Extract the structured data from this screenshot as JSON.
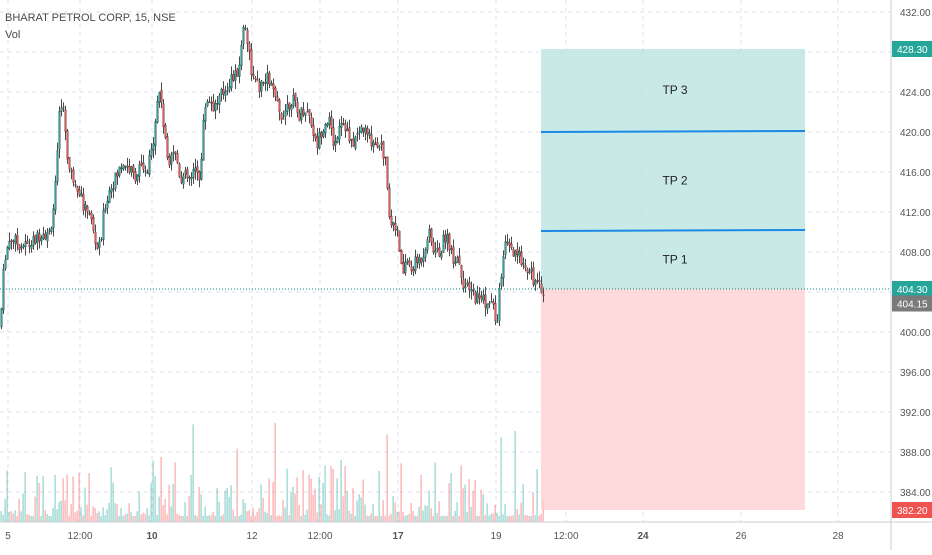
{
  "header": {
    "symbol_line": "BHARAT PETROL CORP, 15, NSE",
    "volume_label": "Vol"
  },
  "colors": {
    "up": "#26a69a",
    "down": "#ef5350",
    "target_zone": "#b2dfdb",
    "stop_zone": "#ffcdd2",
    "tp_line": "#1e88e5",
    "current_price_line": "#00897b",
    "current_price_badge": "#26a69a",
    "close_badge": "#7a7a7a",
    "bottom_badge": "#ef5350",
    "grid": "#e0e3eb",
    "axis_text": "#555555"
  },
  "chart_data": {
    "type": "candlestick",
    "title": "BHARAT PETROL CORP, 15, NSE",
    "price_axis": {
      "ticks": [
        "432.00",
        "428.00",
        "424.00",
        "420.00",
        "416.00",
        "412.00",
        "408.00",
        "404.00",
        "400.00",
        "396.00",
        "392.00",
        "388.00",
        "384.00"
      ],
      "range": [
        382.2,
        433.2
      ]
    },
    "time_axis": {
      "ticks": [
        {
          "label": "5",
          "bold": false
        },
        {
          "label": "12:00",
          "bold": false
        },
        {
          "label": "10",
          "bold": true
        },
        {
          "label": "12",
          "bold": false
        },
        {
          "label": "12:00",
          "bold": false
        },
        {
          "label": "17",
          "bold": true
        },
        {
          "label": "19",
          "bold": false
        },
        {
          "label": "12:00",
          "bold": false
        },
        {
          "label": "24",
          "bold": true
        },
        {
          "label": "26",
          "bold": false
        },
        {
          "label": "28",
          "bold": false
        }
      ]
    },
    "price_anchors": [
      [
        0,
        400.5
      ],
      [
        4,
        407.5
      ],
      [
        10,
        409.5
      ],
      [
        18,
        408.8
      ],
      [
        28,
        408.6
      ],
      [
        35,
        409.2
      ],
      [
        42,
        410.2
      ],
      [
        48,
        409.5
      ],
      [
        52,
        411.5
      ],
      [
        56,
        415.5
      ],
      [
        60,
        423.5
      ],
      [
        64,
        421.5
      ],
      [
        68,
        416.5
      ],
      [
        72,
        415.5
      ],
      [
        76,
        415
      ],
      [
        80,
        414
      ],
      [
        84,
        412
      ],
      [
        88,
        412.5
      ],
      [
        92,
        410.5
      ],
      [
        96,
        408.5
      ],
      [
        100,
        408.5
      ],
      [
        104,
        412.5
      ],
      [
        110,
        414.5
      ],
      [
        116,
        415.5
      ],
      [
        122,
        417
      ],
      [
        128,
        416.5
      ],
      [
        134,
        415.5
      ],
      [
        140,
        416.5
      ],
      [
        146,
        415.5
      ],
      [
        152,
        418.5
      ],
      [
        156,
        422.5
      ],
      [
        160,
        424.5
      ],
      [
        164,
        419.5
      ],
      [
        168,
        417
      ],
      [
        172,
        418.5
      ],
      [
        176,
        417.5
      ],
      [
        180,
        415.5
      ],
      [
        186,
        415.5
      ],
      [
        190,
        415
      ],
      [
        196,
        416.5
      ],
      [
        200,
        415.5
      ],
      [
        204,
        422.5
      ],
      [
        208,
        423.5
      ],
      [
        214,
        422.5
      ],
      [
        220,
        423.5
      ],
      [
        226,
        424.5
      ],
      [
        232,
        425.5
      ],
      [
        236,
        425.5
      ],
      [
        240,
        427.5
      ],
      [
        244,
        431.5
      ],
      [
        248,
        428.5
      ],
      [
        252,
        425.5
      ],
      [
        256,
        424.5
      ],
      [
        262,
        424.5
      ],
      [
        268,
        425.5
      ],
      [
        274,
        423.5
      ],
      [
        280,
        421.5
      ],
      [
        286,
        422.5
      ],
      [
        292,
        423.5
      ],
      [
        298,
        421.5
      ],
      [
        304,
        422.5
      ],
      [
        310,
        421.5
      ],
      [
        316,
        418.5
      ],
      [
        322,
        420.5
      ],
      [
        328,
        421.5
      ],
      [
        334,
        418.5
      ],
      [
        340,
        421.5
      ],
      [
        346,
        420.5
      ],
      [
        350,
        418.5
      ],
      [
        356,
        419.5
      ],
      [
        362,
        420.5
      ],
      [
        368,
        419.5
      ],
      [
        374,
        419
      ],
      [
        380,
        419
      ],
      [
        386,
        416.5
      ],
      [
        390,
        410.5
      ],
      [
        394,
        411.5
      ],
      [
        398,
        409
      ],
      [
        402,
        405.5
      ],
      [
        406,
        407.5
      ],
      [
        410,
        406
      ],
      [
        416,
        407
      ],
      [
        422,
        407.5
      ],
      [
        428,
        410
      ],
      [
        434,
        408
      ],
      [
        440,
        408
      ],
      [
        446,
        410
      ],
      [
        452,
        407.5
      ],
      [
        458,
        407.5
      ],
      [
        464,
        404.5
      ],
      [
        470,
        404
      ],
      [
        476,
        403.5
      ],
      [
        482,
        403.5
      ],
      [
        488,
        402.5
      ],
      [
        492,
        403
      ],
      [
        496,
        400.5
      ],
      [
        500,
        405
      ],
      [
        504,
        408.5
      ],
      [
        508,
        408.5
      ],
      [
        514,
        407.5
      ],
      [
        520,
        407.5
      ],
      [
        526,
        406.5
      ],
      [
        530,
        406.5
      ],
      [
        534,
        405
      ],
      [
        540,
        404.3
      ],
      [
        544,
        404.3
      ]
    ],
    "current_price": 404.3,
    "last_close": 404.15,
    "bottom_badge_value": 382.2,
    "position": {
      "entry": 404.3,
      "target": 428.3,
      "stop": 382.2,
      "targets": [
        {
          "label": "TP 1",
          "price": 410.2
        },
        {
          "label": "TP 2",
          "price": 420.1
        },
        {
          "label": "TP 3",
          "price": 428.3
        }
      ]
    }
  },
  "badges": {
    "target": "428.30",
    "current": "404.30",
    "close": "404.15",
    "stop": "382.20"
  }
}
